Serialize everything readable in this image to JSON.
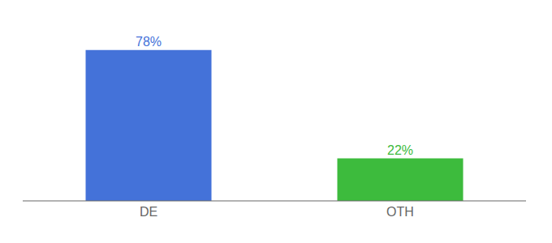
{
  "chart_data": {
    "type": "bar",
    "categories": [
      "DE",
      "OTH"
    ],
    "values": [
      78,
      22
    ],
    "value_labels": [
      "78%",
      "22%"
    ],
    "colors": [
      "#4472d9",
      "#3dbb3d"
    ],
    "data_labels": true,
    "ylim": [
      0,
      88
    ],
    "tick_labels": "x"
  }
}
